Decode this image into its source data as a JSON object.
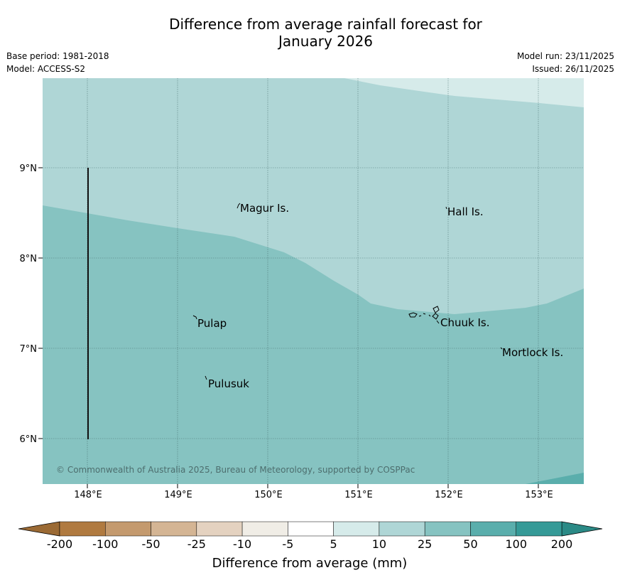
{
  "title_line1": "Difference from average rainfall forecast for",
  "title_line2": "January 2026",
  "meta": {
    "base_period": "Base period: 1981-2018",
    "model": "Model: ACCESS-S2",
    "model_run": "Model run: 23/11/2025",
    "issued": "Issued: 26/11/2025"
  },
  "map": {
    "lat_labels": [
      "9°N",
      "8°N",
      "7°N",
      "6°N"
    ],
    "lon_labels": [
      "148°E",
      "149°E",
      "150°E",
      "151°E",
      "152°E",
      "153°E"
    ],
    "islands": [
      "Magur Is.",
      "Hall Is.",
      "Pulap",
      "Chuuk Is.",
      "Mortlock Is.",
      "Pulusuk"
    ],
    "copyright": "© Commonwealth of Australia 2025, Bureau of Meteorology, supported by COSPPac"
  },
  "colorbar": {
    "ticks": [
      "-200",
      "-100",
      "-50",
      "-25",
      "-10",
      "-5",
      "5",
      "10",
      "25",
      "50",
      "100",
      "200"
    ],
    "colors": [
      "#b07a40",
      "#c49a6e",
      "#d4b594",
      "#e4d2c0",
      "#f0ede6",
      "#ffffff",
      "#d6ebea",
      "#afd6d6",
      "#86c3c1",
      "#5aaeac",
      "#359a97"
    ],
    "under_color": "#9b6a34",
    "over_color": "#2b8a86",
    "label": "Difference from average (mm)"
  },
  "field_colors": {
    "band_10_25": "#afd6d6",
    "band_25_50": "#86c3c1",
    "band_5_10": "#d6ebea",
    "band_50_100": "#5aaeac"
  }
}
